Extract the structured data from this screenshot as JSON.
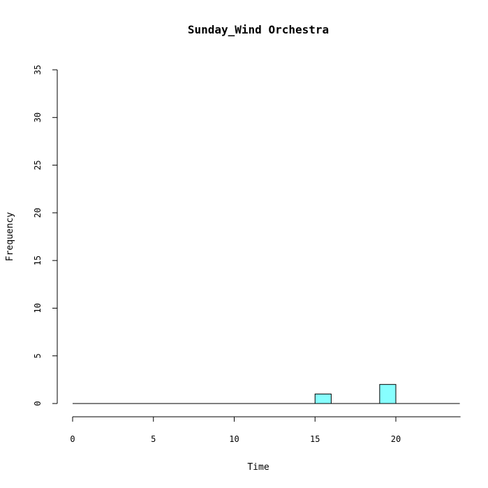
{
  "chart_data": {
    "type": "bar",
    "title": "Sunday_Wind Orchestra",
    "xlabel": "Time",
    "ylabel": "Frequency",
    "xlim": [
      0,
      24
    ],
    "ylim": [
      0,
      35
    ],
    "x_ticks": [
      0,
      5,
      10,
      15,
      20
    ],
    "y_ticks": [
      0,
      5,
      10,
      15,
      20,
      25,
      30,
      35
    ],
    "bins": [
      {
        "start": 15,
        "end": 16,
        "count": 1
      },
      {
        "start": 19,
        "end": 20,
        "count": 2
      }
    ],
    "bar_color": "#87FFFF",
    "baseline": true,
    "grid": false
  }
}
